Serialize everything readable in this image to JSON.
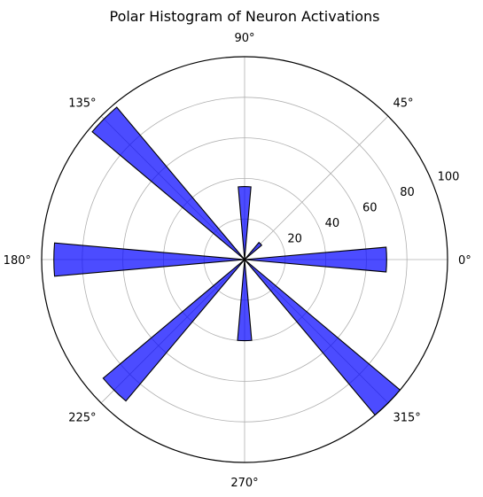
{
  "chart_data": {
    "type": "polar-bar",
    "title": "Polar Histogram of Neuron Activations",
    "rmax": 100,
    "radial_ticks": [
      20,
      40,
      60,
      80,
      100
    ],
    "angle_ticks": [
      0,
      45,
      90,
      135,
      180,
      225,
      270,
      315
    ],
    "angle_tick_labels": [
      "0°",
      "45°",
      "90°",
      "135°",
      "180°",
      "225°",
      "270°",
      "315°"
    ],
    "bar_width_deg": 10,
    "grid": true,
    "bar_color": "#0000ff",
    "bar_alpha": 0.7,
    "edge_color": "#000000",
    "bins": [
      {
        "angle": 0,
        "value": 70
      },
      {
        "angle": 45,
        "value": 11
      },
      {
        "angle": 90,
        "value": 36
      },
      {
        "angle": 135,
        "value": 98
      },
      {
        "angle": 180,
        "value": 94
      },
      {
        "angle": 225,
        "value": 91
      },
      {
        "angle": 270,
        "value": 40
      },
      {
        "angle": 315,
        "value": 105
      }
    ]
  }
}
